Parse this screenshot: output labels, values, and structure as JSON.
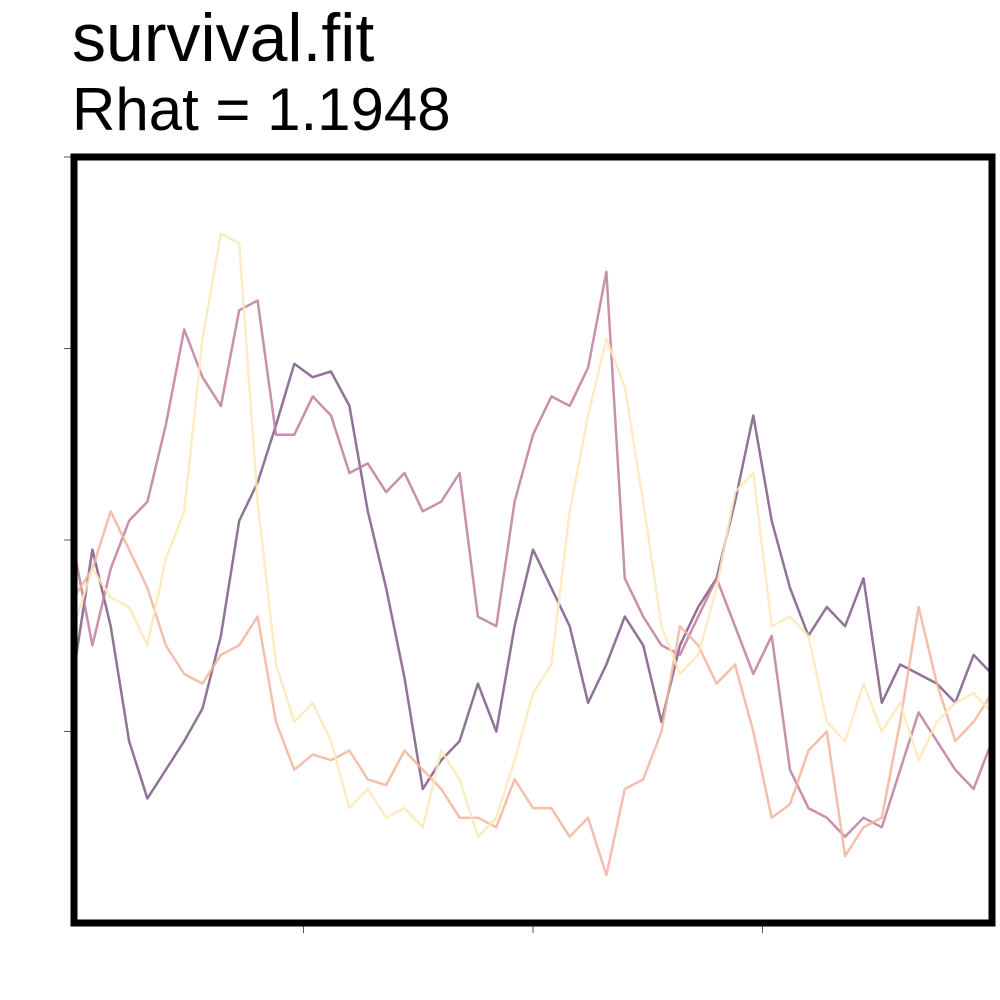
{
  "header": {
    "title": "survival.fit",
    "subtitle": "Rhat = 1.1948"
  },
  "chart_data": {
    "type": "line",
    "title": "survival.fit",
    "subtitle": "Rhat = 1.1948",
    "xlabel": "",
    "ylabel": "",
    "xlim": [
      0,
      1000
    ],
    "ylim": [
      0,
      4
    ],
    "x_ticks": [
      250,
      500,
      750
    ],
    "y_ticks": [
      1,
      2,
      3,
      4
    ],
    "tick_labels_visible": false,
    "grid": false,
    "legend": "none",
    "series": [
      {
        "color": "#7d5a84",
        "x": [
          0,
          20,
          40,
          60,
          80,
          100,
          120,
          140,
          160,
          180,
          200,
          220,
          240,
          260,
          280,
          300,
          320,
          340,
          360,
          380,
          400,
          420,
          440,
          460,
          480,
          500,
          520,
          540,
          560,
          580,
          600,
          620,
          640,
          660,
          680,
          700,
          720,
          740,
          760,
          780,
          800,
          820,
          840,
          860,
          880,
          900,
          920,
          940,
          960,
          980,
          1000
        ],
        "values": [
          1.32,
          1.95,
          1.55,
          0.95,
          0.65,
          0.8,
          0.95,
          1.12,
          1.5,
          2.1,
          2.3,
          2.6,
          2.92,
          2.85,
          2.88,
          2.7,
          2.15,
          1.75,
          1.28,
          0.7,
          0.85,
          0.95,
          1.25,
          1.0,
          1.55,
          1.95,
          1.75,
          1.55,
          1.15,
          1.35,
          1.6,
          1.45,
          1.05,
          1.45,
          1.65,
          1.8,
          2.2,
          2.65,
          2.1,
          1.75,
          1.5,
          1.65,
          1.55,
          1.8,
          1.15,
          1.35,
          1.3,
          1.25,
          1.15,
          1.4,
          1.3
        ]
      },
      {
        "color": "#c07d9e",
        "x": [
          0,
          20,
          40,
          60,
          80,
          100,
          120,
          140,
          160,
          180,
          200,
          220,
          240,
          260,
          280,
          300,
          320,
          340,
          360,
          380,
          400,
          420,
          440,
          460,
          480,
          500,
          520,
          540,
          560,
          580,
          600,
          620,
          640,
          660,
          680,
          700,
          720,
          740,
          760,
          780,
          800,
          820,
          840,
          860,
          880,
          900,
          920,
          940,
          960,
          980,
          1000
        ],
        "values": [
          1.95,
          1.45,
          1.85,
          2.1,
          2.2,
          2.6,
          3.1,
          2.85,
          2.7,
          3.2,
          3.25,
          2.55,
          2.55,
          2.75,
          2.65,
          2.35,
          2.4,
          2.25,
          2.35,
          2.15,
          2.2,
          2.35,
          1.6,
          1.55,
          2.2,
          2.55,
          2.75,
          2.7,
          2.9,
          3.4,
          1.8,
          1.6,
          1.45,
          1.4,
          1.6,
          1.8,
          1.55,
          1.3,
          1.5,
          0.8,
          0.6,
          0.55,
          0.45,
          0.55,
          0.5,
          0.8,
          1.1,
          0.95,
          0.8,
          0.7,
          0.95
        ]
      },
      {
        "color": "#f2b49c",
        "x": [
          0,
          20,
          40,
          60,
          80,
          100,
          120,
          140,
          160,
          180,
          200,
          220,
          240,
          260,
          280,
          300,
          320,
          340,
          360,
          380,
          400,
          420,
          440,
          460,
          480,
          500,
          520,
          540,
          560,
          580,
          600,
          620,
          640,
          660,
          680,
          700,
          720,
          740,
          760,
          780,
          800,
          820,
          840,
          860,
          880,
          900,
          920,
          940,
          960,
          980,
          1000
        ],
        "values": [
          1.7,
          1.85,
          2.15,
          1.95,
          1.75,
          1.45,
          1.3,
          1.25,
          1.4,
          1.45,
          1.6,
          1.05,
          0.8,
          0.88,
          0.85,
          0.9,
          0.75,
          0.72,
          0.9,
          0.8,
          0.7,
          0.55,
          0.55,
          0.5,
          0.75,
          0.6,
          0.6,
          0.45,
          0.55,
          0.25,
          0.7,
          0.75,
          1.0,
          1.55,
          1.45,
          1.25,
          1.35,
          1.0,
          0.55,
          0.62,
          0.9,
          1.0,
          0.35,
          0.5,
          0.55,
          1.05,
          1.65,
          1.25,
          0.95,
          1.05,
          1.2
        ]
      },
      {
        "color": "#fde9b8",
        "x": [
          0,
          20,
          40,
          60,
          80,
          100,
          120,
          140,
          160,
          180,
          200,
          220,
          240,
          260,
          280,
          300,
          320,
          340,
          360,
          380,
          400,
          420,
          440,
          460,
          480,
          500,
          520,
          540,
          560,
          580,
          600,
          620,
          640,
          660,
          680,
          700,
          720,
          740,
          760,
          780,
          800,
          820,
          840,
          860,
          880,
          900,
          920,
          940,
          960,
          980,
          1000
        ],
        "values": [
          1.55,
          1.85,
          1.7,
          1.65,
          1.45,
          1.9,
          2.15,
          3.05,
          3.6,
          3.55,
          2.2,
          1.35,
          1.05,
          1.15,
          0.95,
          0.6,
          0.7,
          0.55,
          0.6,
          0.5,
          0.9,
          0.75,
          0.45,
          0.55,
          0.85,
          1.2,
          1.35,
          2.15,
          2.65,
          3.05,
          2.8,
          2.2,
          1.55,
          1.3,
          1.4,
          1.75,
          2.25,
          2.35,
          1.55,
          1.6,
          1.5,
          1.05,
          0.95,
          1.25,
          1.0,
          1.15,
          0.85,
          1.05,
          1.15,
          1.2,
          1.1
        ]
      }
    ]
  }
}
